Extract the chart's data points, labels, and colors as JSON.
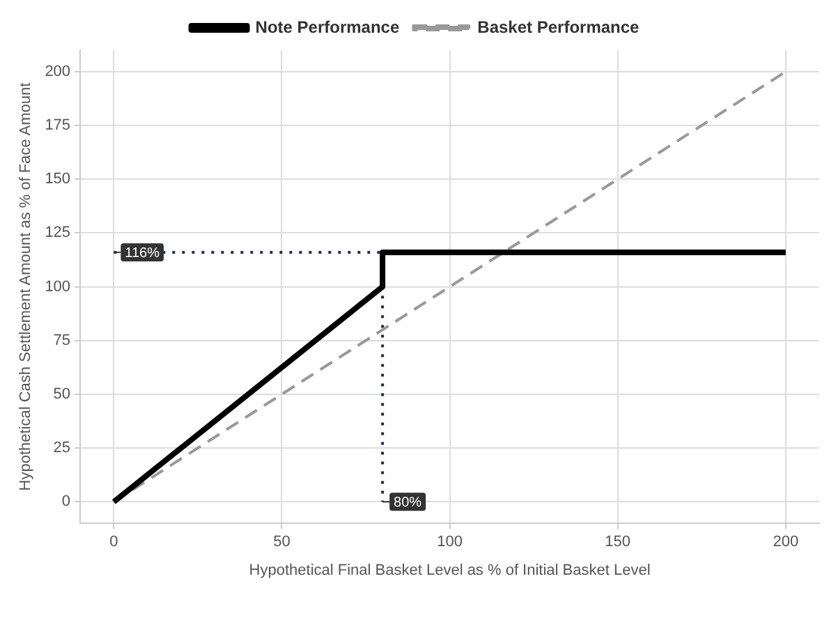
{
  "chart_data": {
    "type": "line",
    "xlabel": "Hypothetical Final Basket Level as % of Initial Basket Level",
    "ylabel": "Hypothetical Cash Settlement Amount as % of Face Amount",
    "series": [
      {
        "name": "Note Performance",
        "color": "#000000",
        "x": [
          0,
          80,
          80,
          200
        ],
        "values": [
          0,
          100,
          116,
          116
        ],
        "line_style": "solid"
      },
      {
        "name": "Basket Performance",
        "color": "#999999",
        "x": [
          0,
          200
        ],
        "values": [
          0,
          200
        ],
        "line_style": "dashed"
      },
      {
        "color": "#1f2a44",
        "x": [
          0,
          80,
          80
        ],
        "values": [
          116,
          116,
          0
        ],
        "line_style": "dotted"
      }
    ],
    "xlim": [
      -10,
      210
    ],
    "xticks": [
      0,
      50,
      100,
      150,
      200
    ],
    "ylim": [
      -10,
      210
    ],
    "yticks": [
      0,
      25,
      50,
      75,
      100,
      125,
      150,
      175,
      200
    ],
    "annotations": [
      {
        "text": "116%",
        "x": 0,
        "y": 116
      },
      {
        "text": "80%",
        "x": 80,
        "y": 0
      }
    ],
    "grid": true,
    "legend": "top",
    "marker": "none"
  }
}
